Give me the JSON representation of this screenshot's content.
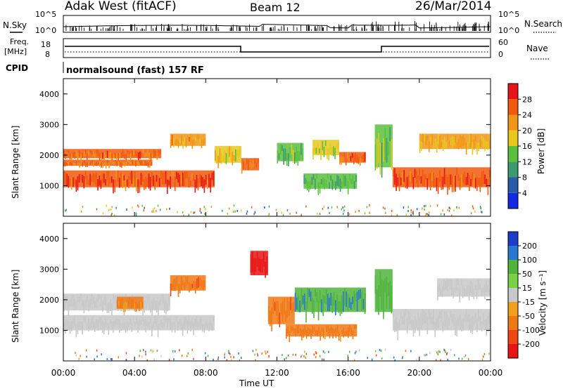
{
  "header": {
    "station": "Adak West (fitACF)",
    "beam": "Beam 12",
    "date": "26/Mar/2014"
  },
  "noise_panel": {
    "left_label": "N.Sky",
    "right_label": "N.Search",
    "tick_top": "10^5",
    "tick_bottom": "10^0"
  },
  "freq_panel": {
    "left_label_1": "Freq.",
    "left_label_2": "[MHz]",
    "left_tick_top": "18",
    "left_tick_bottom": "8",
    "right_label": "Nave",
    "right_tick_top": "60",
    "right_tick_bottom": "0"
  },
  "cpid": {
    "label": "CPID",
    "program": "normalsound (fast) 157 RF"
  },
  "colors": {
    "ground_scatter": "#c8c8c8",
    "power_scale": [
      "#1428e6",
      "#2a5aa8",
      "#3c9a6e",
      "#5ac03c",
      "#e6c81e",
      "#f09614",
      "#f05a0a",
      "#e61414"
    ],
    "velocity_scale": [
      "#1e3cc8",
      "#2878d2",
      "#50b43c",
      "#78d246",
      "#c8c8c8",
      "#f0a01e",
      "#f07814",
      "#f04614",
      "#e61414"
    ]
  },
  "chart_data": [
    {
      "type": "heatmap",
      "panel": "power",
      "ylabel": "Slant Range [km]",
      "ylim": [
        0,
        4500
      ],
      "yticks": [
        "1000",
        "2000",
        "3000",
        "4000"
      ],
      "xlim": [
        0,
        24
      ],
      "colorbar": {
        "label": "Power [dB]",
        "range": [
          0,
          32
        ],
        "ticks": [
          "4",
          "8",
          "12",
          "16",
          "20",
          "24",
          "28"
        ]
      },
      "bands": [
        {
          "x": [
            0,
            8.5
          ],
          "range": [
            950,
            1500
          ],
          "value": 27
        },
        {
          "x": [
            0,
            5
          ],
          "range": [
            1650,
            1850
          ],
          "value": 24
        },
        {
          "x": [
            0,
            5.5
          ],
          "range": [
            1900,
            2200
          ],
          "value": 25
        },
        {
          "x": [
            6,
            8
          ],
          "range": [
            2300,
            2700
          ],
          "value": 22
        },
        {
          "x": [
            8.5,
            10
          ],
          "range": [
            1750,
            2300
          ],
          "value": 18
        },
        {
          "x": [
            10,
            11
          ],
          "range": [
            1500,
            1900
          ],
          "value": 24
        },
        {
          "x": [
            12,
            13.5
          ],
          "range": [
            1800,
            2400
          ],
          "value": 14
        },
        {
          "x": [
            13.5,
            16.5
          ],
          "range": [
            900,
            1400
          ],
          "value": 12
        },
        {
          "x": [
            14,
            15.5
          ],
          "range": [
            2000,
            2500
          ],
          "value": 16
        },
        {
          "x": [
            15.5,
            17
          ],
          "range": [
            1750,
            2100
          ],
          "value": 26
        },
        {
          "x": [
            17.5,
            18.5
          ],
          "range": [
            1600,
            3000
          ],
          "value": 14
        },
        {
          "x": [
            18.5,
            24
          ],
          "range": [
            950,
            1600
          ],
          "value": 27
        },
        {
          "x": [
            20,
            24
          ],
          "range": [
            2200,
            2700
          ],
          "value": 20
        }
      ]
    },
    {
      "type": "heatmap",
      "panel": "velocity",
      "ylabel": "Slant Range [km]",
      "xlabel": "Time UT",
      "ylim": [
        0,
        4500
      ],
      "yticks": [
        "1000",
        "2000",
        "3000",
        "4000"
      ],
      "xlim": [
        0,
        24
      ],
      "xticks": [
        "00:00",
        "04:00",
        "08:00",
        "12:00",
        "16:00",
        "20:00",
        "00:00"
      ],
      "colorbar": {
        "label": "Velocity [m s⁻¹]",
        "ticks": [
          "200",
          "100",
          "50",
          "15",
          "-15",
          "-50",
          "-100",
          "-200"
        ]
      },
      "bands": [
        {
          "x": [
            0,
            8.5
          ],
          "range": [
            1000,
            1500
          ],
          "value": 0
        },
        {
          "x": [
            0,
            6
          ],
          "range": [
            1650,
            2200
          ],
          "value": 0
        },
        {
          "x": [
            3,
            4.5
          ],
          "range": [
            1700,
            2100
          ],
          "value": -40
        },
        {
          "x": [
            6,
            8
          ],
          "range": [
            2300,
            2800
          ],
          "value": -60
        },
        {
          "x": [
            10.5,
            11.5
          ],
          "range": [
            2800,
            3600
          ],
          "value": -200
        },
        {
          "x": [
            11.5,
            13
          ],
          "range": [
            1200,
            2100
          ],
          "value": -60
        },
        {
          "x": [
            12.5,
            16.5
          ],
          "range": [
            800,
            1200
          ],
          "value": -50
        },
        {
          "x": [
            13,
            17
          ],
          "range": [
            1600,
            2400
          ],
          "value": 70
        },
        {
          "x": [
            17.5,
            18.5
          ],
          "range": [
            1600,
            3000
          ],
          "value": 60
        },
        {
          "x": [
            18.5,
            24
          ],
          "range": [
            1000,
            1700
          ],
          "value": 0
        },
        {
          "x": [
            21,
            24
          ],
          "range": [
            2100,
            2700
          ],
          "value": 0
        }
      ]
    }
  ]
}
